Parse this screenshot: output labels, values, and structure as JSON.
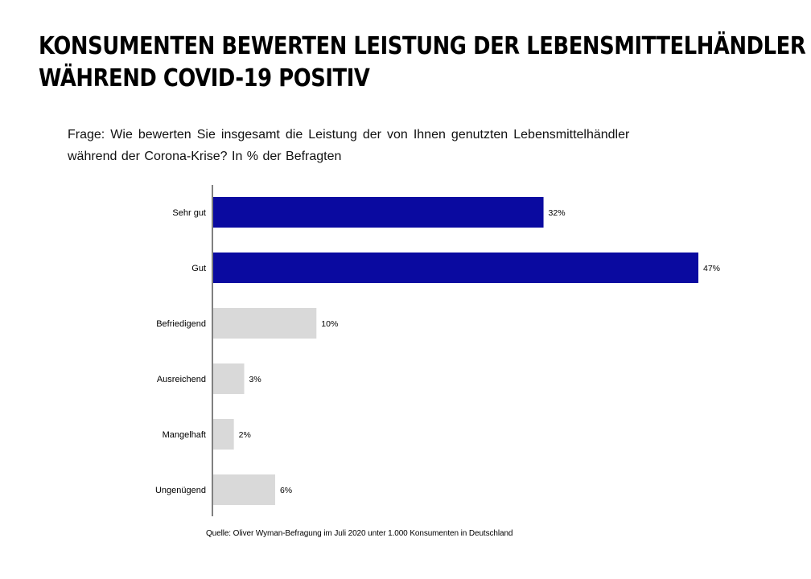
{
  "title_lines": [
    "KONSUMENTEN BEWERTEN LEISTUNG DER LEBENSMITTELHÄNDLER",
    "WÄHREND COVID-19 POSITIV"
  ],
  "question_lines": [
    "Frage: Wie bewerten Sie insgesamt die Leistung der von Ihnen genutzten Lebensmittelhändler",
    "während der Corona-Krise?  In % der Befragten"
  ],
  "source": "Quelle: Oliver Wyman-Befragung im Juli 2020 unter 1.000 Konsumenten in Deutschland",
  "colors": {
    "positive": "#0a0aa0",
    "other": "#d9d9d9",
    "axis": "#000000"
  },
  "chart_data": {
    "type": "bar",
    "orientation": "horizontal",
    "categories": [
      "Sehr gut",
      "Gut",
      "Befriedigend",
      "Ausreichend",
      "Mangelhaft",
      "Ungenügend"
    ],
    "values": [
      32,
      47,
      10,
      3,
      2,
      6
    ],
    "value_labels": [
      "32%",
      "47%",
      "10%",
      "3%",
      "2%",
      "6%"
    ],
    "highlight": [
      true,
      true,
      false,
      false,
      false,
      false
    ],
    "unit": "%",
    "title": "",
    "xlabel": "",
    "ylabel": "",
    "xlim": [
      0,
      47
    ],
    "grid": false,
    "legend": "none"
  }
}
